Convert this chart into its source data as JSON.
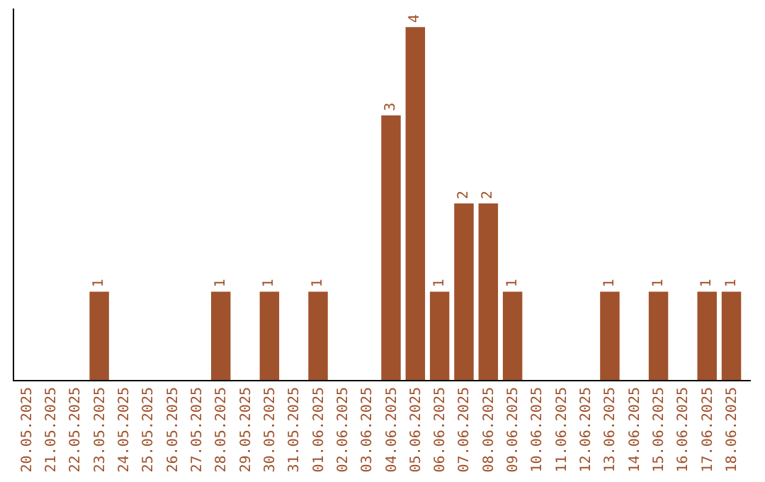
{
  "chart_data": {
    "type": "bar",
    "categories": [
      "20.05.2025",
      "21.05.2025",
      "22.05.2025",
      "23.05.2025",
      "24.05.2025",
      "25.05.2025",
      "26.05.2025",
      "27.05.2025",
      "28.05.2025",
      "29.05.2025",
      "30.05.2025",
      "31.05.2025",
      "01.06.2025",
      "02.06.2025",
      "03.06.2025",
      "04.06.2025",
      "05.06.2025",
      "06.06.2025",
      "07.06.2025",
      "08.06.2025",
      "09.06.2025",
      "10.06.2025",
      "11.06.2025",
      "12.06.2025",
      "13.06.2025",
      "14.06.2025",
      "15.06.2025",
      "16.06.2025",
      "17.06.2025",
      "18.06.2025"
    ],
    "values": [
      0,
      0,
      0,
      1,
      0,
      0,
      0,
      0,
      1,
      0,
      1,
      0,
      1,
      0,
      0,
      3,
      4,
      1,
      2,
      2,
      1,
      0,
      0,
      0,
      1,
      0,
      1,
      0,
      1,
      1
    ],
    "value_labels": [
      null,
      null,
      null,
      "1",
      null,
      null,
      null,
      null,
      "1",
      null,
      "1",
      null,
      "1",
      null,
      null,
      "3",
      "4",
      "1",
      "2",
      "2",
      "1",
      null,
      null,
      null,
      "1",
      null,
      "1",
      null,
      "1",
      "1"
    ],
    "color": "#a0522d",
    "tick_labels": "x"
  }
}
